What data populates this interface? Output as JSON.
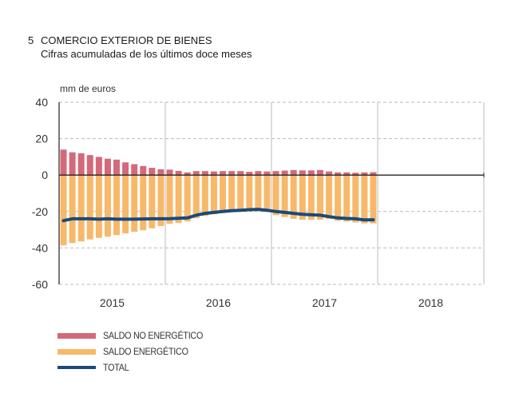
{
  "header": {
    "number": "5",
    "title": "COMERCIO EXTERIOR DE BIENES",
    "subtitle": "Cifras acumuladas de los últimos doce meses",
    "unit": "mm de euros"
  },
  "colors": {
    "no_energetico": "#d4697a",
    "energetico": "#f8b86a",
    "total": "#1a4a7a",
    "grid": "#bbbbbb",
    "axis": "#222222"
  },
  "chart_data": {
    "type": "bar",
    "title": "COMERCIO EXTERIOR DE BIENES",
    "subtitle": "Cifras acumuladas de los últimos doce meses",
    "xlabel": "",
    "ylabel": "mm de euros",
    "ylim": [
      -60,
      40
    ],
    "yticks": [
      40,
      20,
      0,
      -20,
      -40,
      -60
    ],
    "x_periods": [
      "2015",
      "2016",
      "2017",
      "2018"
    ],
    "grid": true,
    "legend_position": "bottom-left",
    "months_per_period": 12,
    "series": [
      {
        "name": "SALDO NO ENERGÉTICO",
        "kind": "bar",
        "values": [
          14,
          12.5,
          12,
          11,
          10,
          9,
          8.5,
          7,
          6,
          5,
          4,
          3.2,
          3,
          2.3,
          1.5,
          2.2,
          2.2,
          2,
          2.2,
          2.2,
          2.2,
          1.8,
          2.2,
          2,
          2.2,
          2.5,
          2.8,
          2.6,
          2.6,
          2.8,
          2,
          1.5,
          1.5,
          1.3,
          1.5,
          1.6
        ]
      },
      {
        "name": "SALDO ENERGÉTICO",
        "kind": "bar",
        "values": [
          -38.6,
          -37.3,
          -36.4,
          -35.3,
          -34.4,
          -33.8,
          -32.9,
          -32,
          -31.1,
          -30.3,
          -29.2,
          -28,
          -26.7,
          -26.3,
          -25.4,
          -23.7,
          -22.4,
          -21.5,
          -20.6,
          -20.2,
          -19.7,
          -19.7,
          -19.7,
          -20.2,
          -22,
          -23,
          -24,
          -24.5,
          -24.5,
          -24.5,
          -24,
          -25,
          -25.5,
          -26,
          -26.5,
          -26.5
        ]
      },
      {
        "name": "TOTAL",
        "kind": "line",
        "values": [
          -25,
          -24,
          -24,
          -24,
          -24.2,
          -24,
          -24.2,
          -24.2,
          -24.2,
          -24.1,
          -24,
          -24,
          -23.9,
          -23.7,
          -23.5,
          -22,
          -21,
          -20.5,
          -20,
          -19.5,
          -19.3,
          -19,
          -18.8,
          -19.3,
          -20,
          -20.5,
          -21,
          -21.5,
          -21.8,
          -22,
          -22.8,
          -23.5,
          -23.8,
          -24,
          -24.6,
          -24.5
        ]
      }
    ]
  },
  "legend": [
    {
      "label": "SALDO NO ENERGÉTICO",
      "kind": "bar"
    },
    {
      "label": "SALDO ENERGÉTICO",
      "kind": "bar"
    },
    {
      "label": "TOTAL",
      "kind": "line"
    }
  ]
}
